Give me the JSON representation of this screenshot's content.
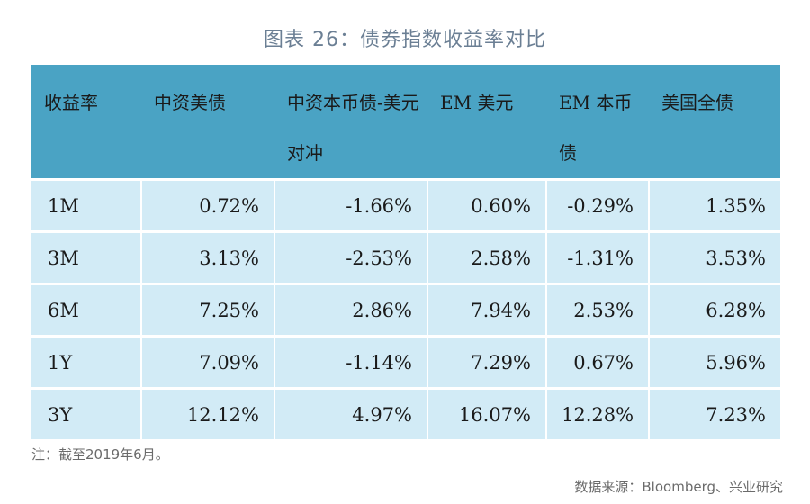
{
  "title": "图表 26：债券指数收益率对比",
  "table": {
    "headers": [
      "收益率",
      "中资美债",
      "中资本币债-美元对冲",
      "EM 美元",
      "EM 本币债",
      "美国全债"
    ],
    "rows": [
      {
        "label": "1M",
        "values": [
          "0.72%",
          "-1.66%",
          "0.60%",
          "-0.29%",
          "1.35%"
        ]
      },
      {
        "label": "3M",
        "values": [
          "3.13%",
          "-2.53%",
          "2.58%",
          "-1.31%",
          "3.53%"
        ]
      },
      {
        "label": "6M",
        "values": [
          "7.25%",
          "2.86%",
          "7.94%",
          "2.53%",
          "6.28%"
        ]
      },
      {
        "label": "1Y",
        "values": [
          "7.09%",
          "-1.14%",
          "7.29%",
          "0.67%",
          "5.96%"
        ]
      },
      {
        "label": "3Y",
        "values": [
          "12.12%",
          "4.97%",
          "16.07%",
          "12.28%",
          "7.23%"
        ]
      }
    ]
  },
  "note": "注：截至2019年6月。",
  "source": "数据来源：Bloomberg、兴业研究",
  "colors": {
    "header_bg": "#4aa3c4",
    "cell_bg": "#d2ebf6",
    "title_color": "#6b7f94"
  }
}
